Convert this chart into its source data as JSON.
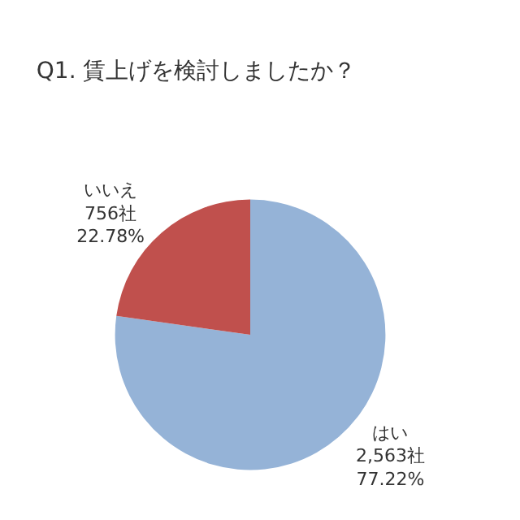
{
  "chart_data": {
    "type": "pie",
    "title": "Q1. 賃上げを検討しましたか？",
    "categories": [
      "はい",
      "いいえ"
    ],
    "values": [
      2563,
      756
    ],
    "value_labels": [
      "2,563社\n77.22%",
      "756社\n22.78%"
    ],
    "colors": [
      "#95b3d7",
      "#c0504d"
    ],
    "legend": false
  }
}
